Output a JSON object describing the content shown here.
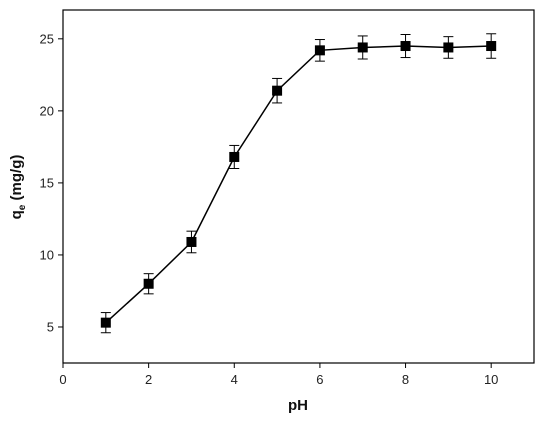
{
  "chart_data": {
    "type": "scatter",
    "xlabel": "pH",
    "ylabel": {
      "main": "q",
      "sub": "e",
      "unit": " (mg/g)"
    },
    "xlim": [
      0,
      11
    ],
    "ylim": [
      2.5,
      27
    ],
    "xticks": [
      0,
      2,
      4,
      6,
      8,
      10
    ],
    "yticks": [
      5,
      10,
      15,
      20,
      25
    ],
    "grid": false,
    "series": [
      {
        "marker": "square",
        "line": true,
        "color": "#000000",
        "x": [
          1,
          2,
          3,
          4,
          5,
          6,
          7,
          8,
          9,
          10
        ],
        "y": [
          5.3,
          8.0,
          10.9,
          16.8,
          21.4,
          24.2,
          24.4,
          24.5,
          24.4,
          24.5
        ],
        "error": [
          0.7,
          0.7,
          0.75,
          0.8,
          0.85,
          0.75,
          0.8,
          0.8,
          0.75,
          0.85
        ]
      }
    ]
  }
}
